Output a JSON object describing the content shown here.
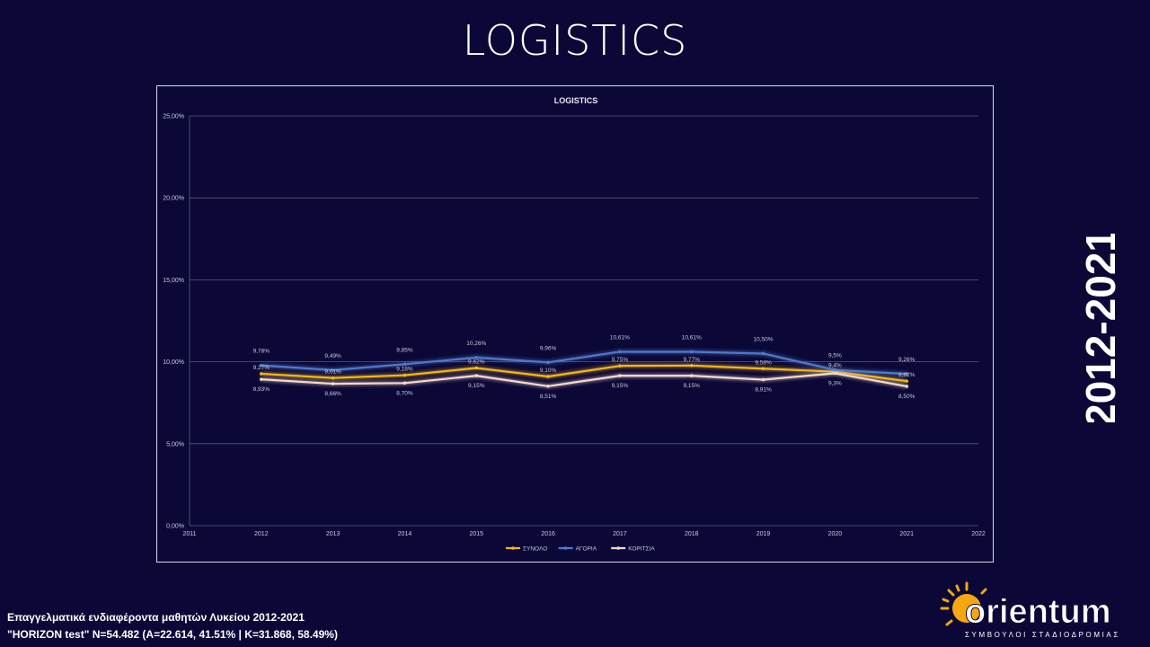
{
  "slide": {
    "title": "LOGISTICS",
    "year_range": "2012-2021",
    "footer_line1": "Επαγγελματικά ενδιαφέροντα μαθητών Λυκείου 2012-2021",
    "footer_line2": "\"HORIZON test\" N=54.482 (A=22.614, 41.51% | K=31.868, 58.49%)",
    "logo_text": "orientum",
    "logo_tagline": "ΣΥΜΒΟΥΛΟΙ ΣΤΑΔΙΟΔΡΟΜΙΑΣ"
  },
  "colors": {
    "background": "#0b0838",
    "synolo": "#f5b617",
    "agoria": "#4f79c9",
    "koritsia": "#f6d9c8",
    "grid": "#5a5878",
    "text": "#c9c9d9"
  },
  "chart_data": {
    "type": "line",
    "title": "LOGISTICS",
    "x": [
      2012,
      2013,
      2014,
      2015,
      2016,
      2017,
      2018,
      2019,
      2020,
      2021
    ],
    "xlim": [
      2011,
      2022
    ],
    "x_ticks": [
      "2011",
      "2012",
      "2013",
      "2014",
      "2015",
      "2016",
      "2017",
      "2018",
      "2019",
      "2020",
      "2021",
      "2022"
    ],
    "ylim": [
      0,
      25
    ],
    "y_ticks": [
      "0,00%",
      "5,00%",
      "10,00%",
      "15,00%",
      "20,00%",
      "25,00%"
    ],
    "grid": true,
    "legend_position": "bottom",
    "series": [
      {
        "name": "ΣΥΝΟΛΟ",
        "color_key": "synolo",
        "values": [
          9.27,
          9.01,
          9.18,
          9.62,
          9.1,
          9.75,
          9.77,
          9.58,
          9.4,
          8.82
        ],
        "labels": [
          "9,27%",
          "9,01%",
          "9,18%",
          "9,62%",
          "9,10%",
          "9,75%",
          "9,77%",
          "9,58%",
          "9,4%",
          "8,82%"
        ]
      },
      {
        "name": "ΑΓΟΡΙΑ",
        "color_key": "agoria",
        "values": [
          9.78,
          9.49,
          9.85,
          10.26,
          9.96,
          10.61,
          10.61,
          10.5,
          9.5,
          9.26
        ],
        "labels": [
          "9,78%",
          "9,49%",
          "9,85%",
          "10,26%",
          "9,96%",
          "10,61%",
          "10,61%",
          "10,50%",
          "9,5%",
          "9,26%"
        ]
      },
      {
        "name": "ΚΟΡΙΤΣΙΑ",
        "color_key": "koritsia",
        "values": [
          8.93,
          8.66,
          8.7,
          9.15,
          8.51,
          9.15,
          9.15,
          8.91,
          9.3,
          8.5
        ],
        "labels": [
          "8,93%",
          "8,66%",
          "8,70%",
          "9,15%",
          "8,51%",
          "9,15%",
          "9,15%",
          "8,91%",
          "9,3%",
          "8,50%"
        ]
      }
    ]
  }
}
